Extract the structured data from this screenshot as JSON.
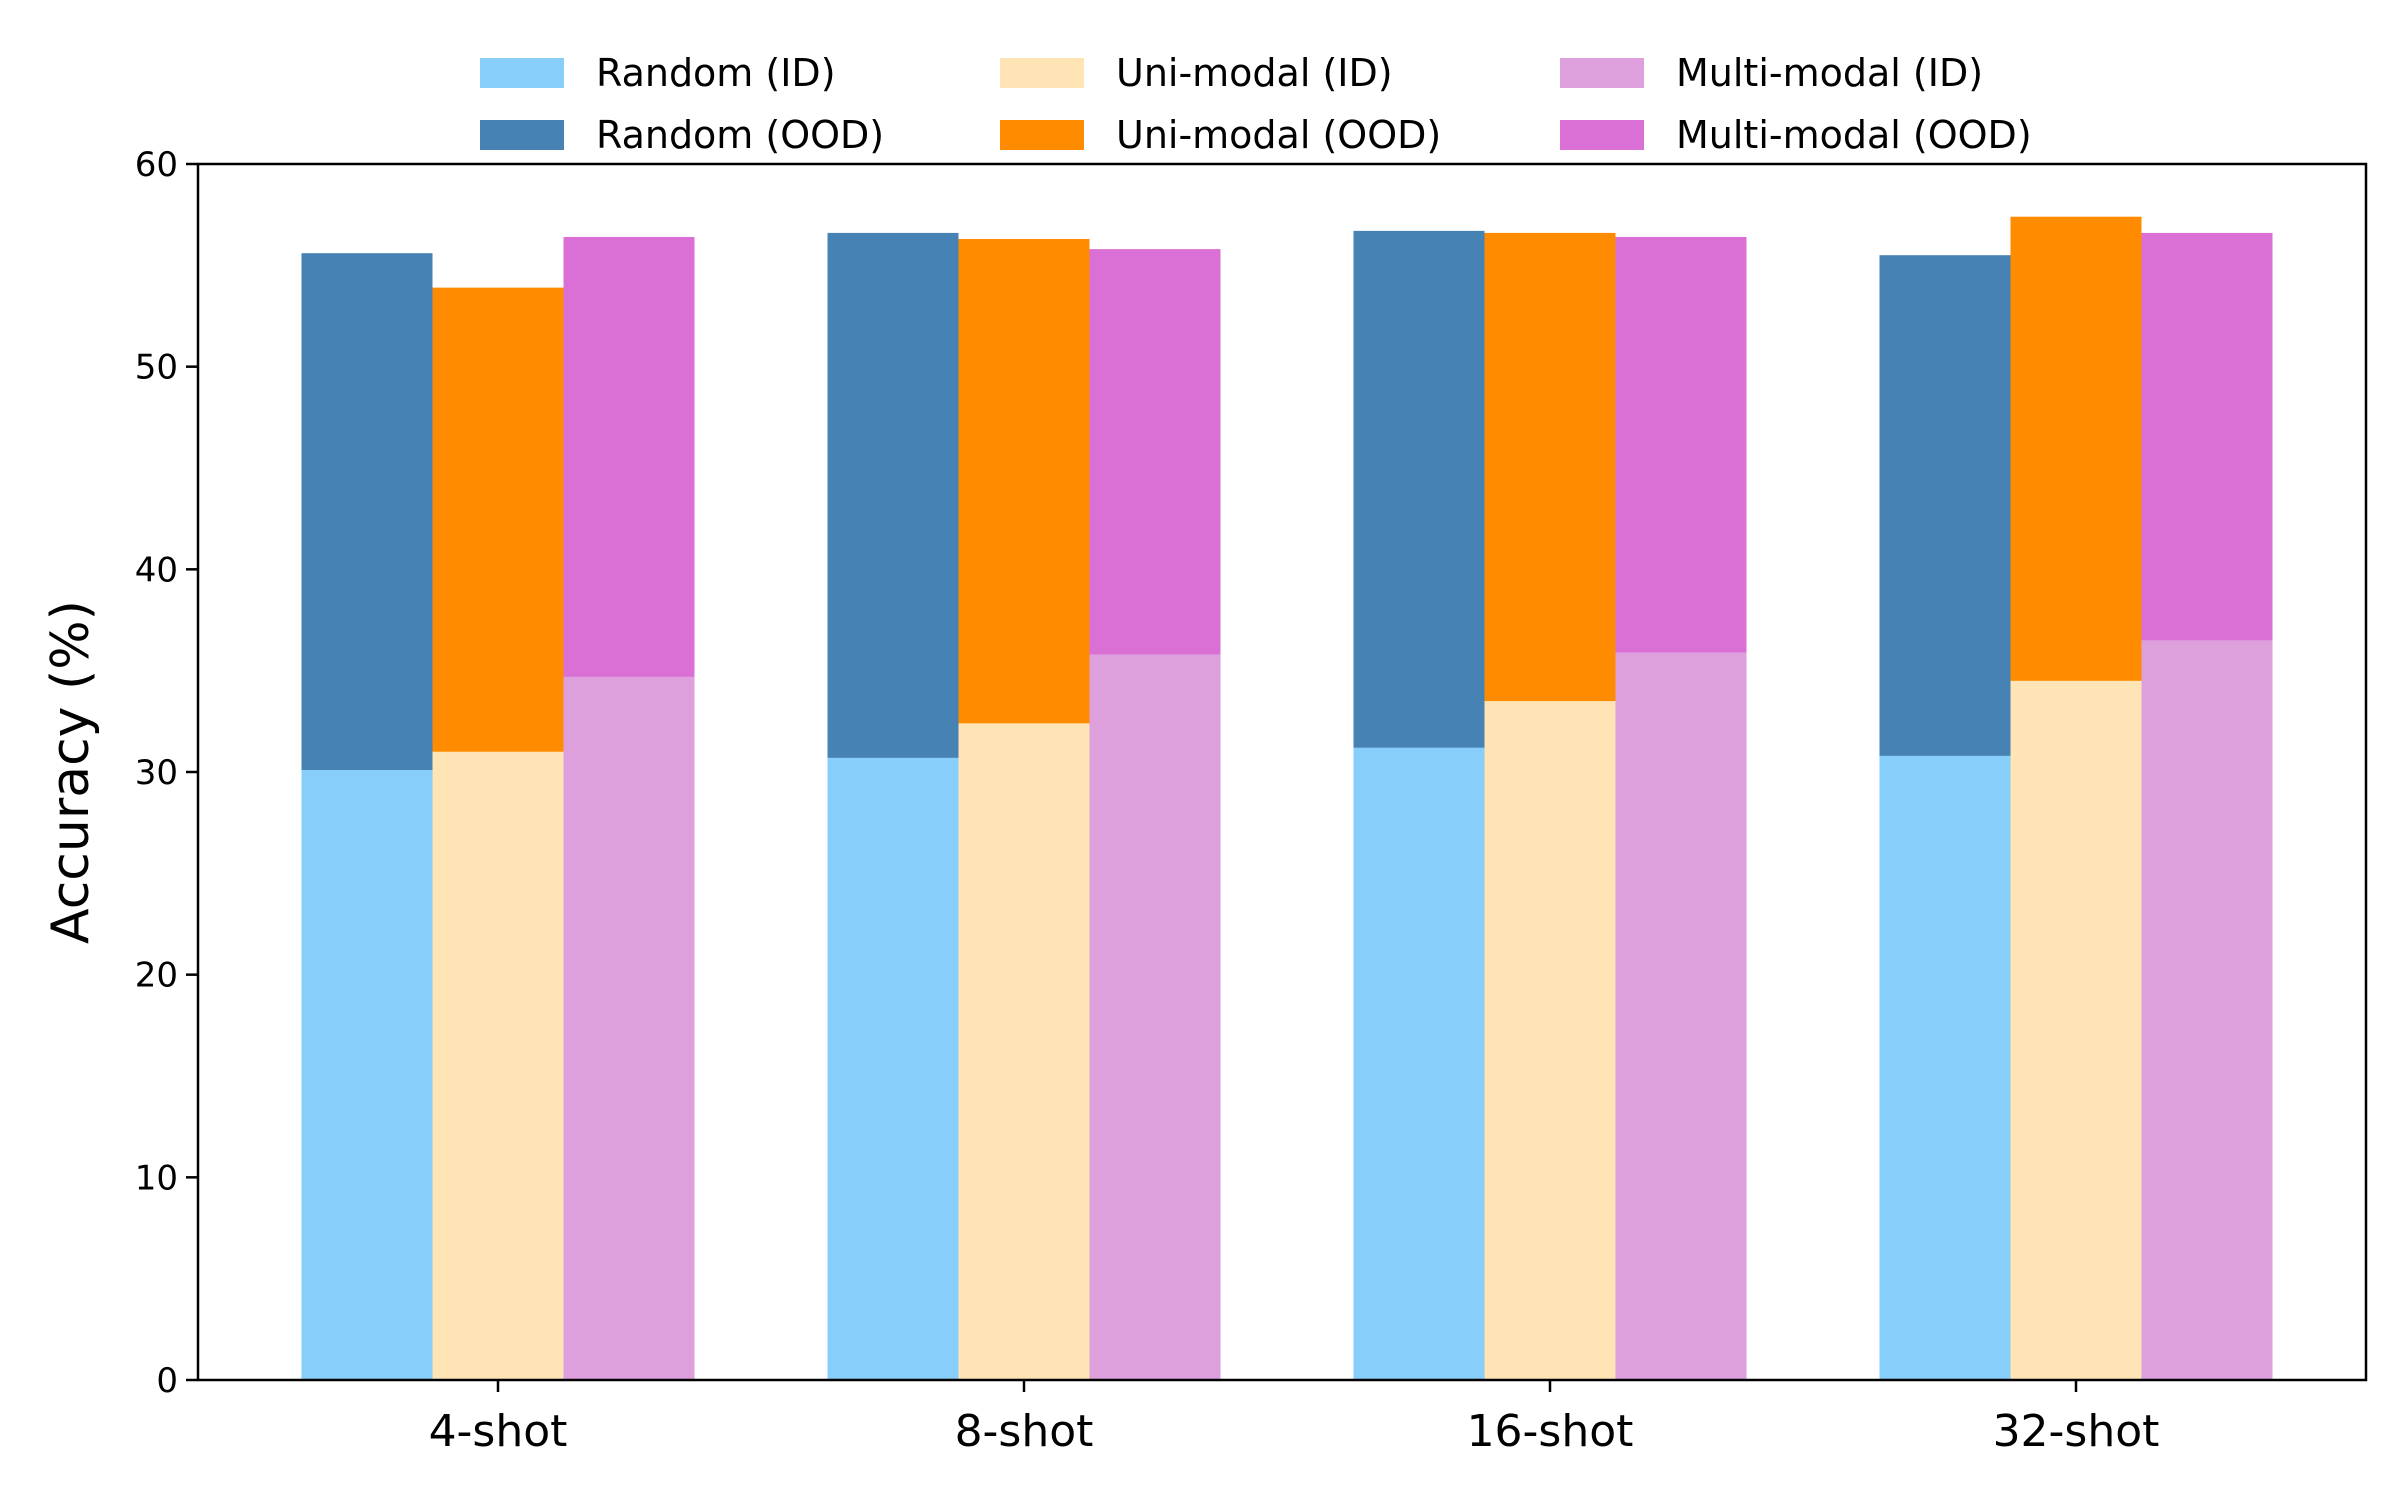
{
  "chart_data": {
    "type": "bar",
    "stacked": true,
    "categories": [
      "4-shot",
      "8-shot",
      "16-shot",
      "32-shot"
    ],
    "ylabel": "Accuracy (%)",
    "xlabel": "",
    "ylim": [
      0,
      60
    ],
    "yticks": [
      0,
      10,
      20,
      30,
      40,
      50,
      60
    ],
    "grid": false,
    "legend_position": "top-center",
    "groups": [
      {
        "key": "random",
        "id_series": {
          "name": "Random (ID)",
          "color": "#87CEFA",
          "values": [
            30.1,
            30.7,
            31.2,
            30.8
          ]
        },
        "ood_series": {
          "name": "Random (OOD)",
          "color": "#4682B4",
          "values": [
            55.6,
            56.6,
            56.7,
            55.5
          ]
        }
      },
      {
        "key": "unimodal",
        "id_series": {
          "name": "Uni-modal (ID)",
          "color": "#FFE4B5",
          "values": [
            31.0,
            32.4,
            33.5,
            34.5
          ]
        },
        "ood_series": {
          "name": "Uni-modal (OOD)",
          "color": "#FF8C00",
          "values": [
            53.9,
            56.3,
            56.6,
            57.4
          ]
        }
      },
      {
        "key": "multimodal",
        "id_series": {
          "name": "Multi-modal (ID)",
          "color": "#DDA0DD",
          "values": [
            34.7,
            35.8,
            35.9,
            36.5
          ]
        },
        "ood_series": {
          "name": "Multi-modal (OOD)",
          "color": "#DA70D6",
          "values": [
            56.4,
            55.8,
            56.4,
            56.6
          ]
        }
      }
    ]
  }
}
